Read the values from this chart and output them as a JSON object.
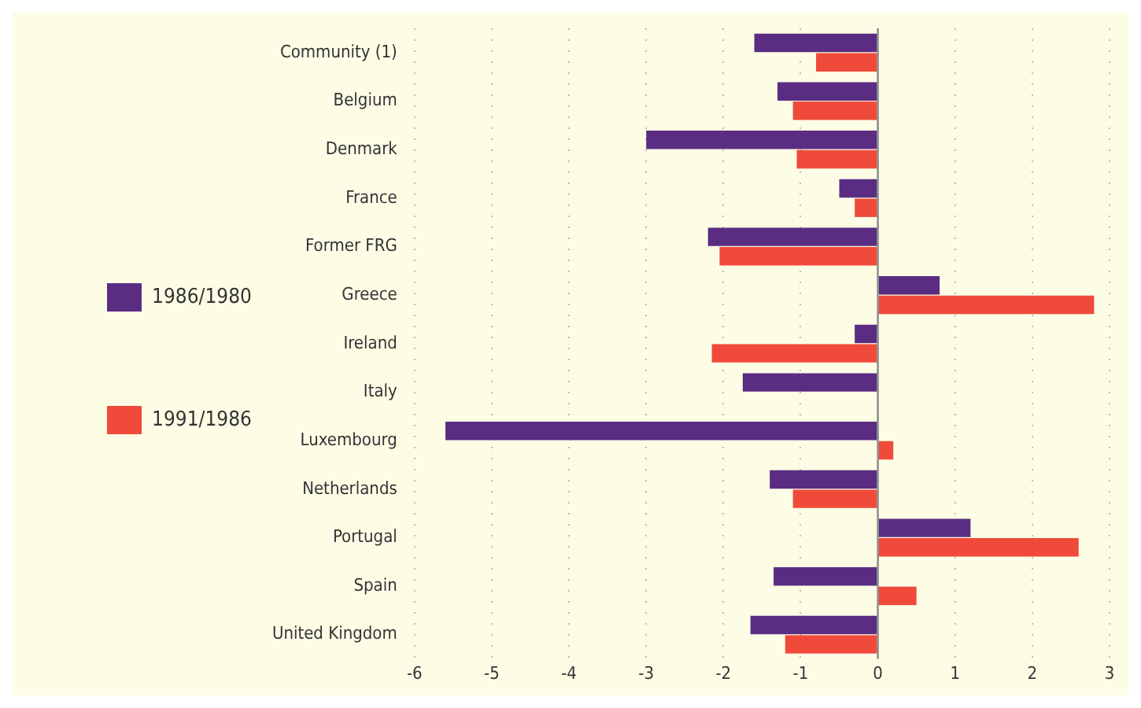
{
  "chart_data": {
    "type": "bar",
    "orientation": "horizontal",
    "categories": [
      "Community (1)",
      "Belgium",
      "Denmark",
      "France",
      "Former FRG",
      "Greece",
      "Ireland",
      "Italy",
      "Luxembourg",
      "Netherlands",
      "Portugal",
      "Spain",
      "United Kingdom"
    ],
    "series": [
      {
        "name": "1986/1980",
        "color": "#5a2d82",
        "values": [
          -1.6,
          -1.3,
          -3.0,
          -0.5,
          -2.2,
          0.8,
          -0.3,
          -1.75,
          -5.6,
          -1.4,
          1.2,
          -1.35,
          -1.65
        ]
      },
      {
        "name": "1991/1986",
        "color": "#f04a3a",
        "values": [
          -0.8,
          -1.1,
          -1.05,
          -0.3,
          -2.05,
          2.8,
          -2.15,
          null,
          0.2,
          -1.1,
          2.6,
          0.5,
          -1.2
        ]
      }
    ],
    "xlim": [
      -6,
      3
    ],
    "xticks": [
      -6,
      -5,
      -4,
      -3,
      -2,
      -1,
      0,
      1,
      2,
      3
    ],
    "grid": "x",
    "legend": "left",
    "ref_lines": [
      {
        "axis": "x",
        "value": 0,
        "color": "#888888"
      }
    ]
  }
}
